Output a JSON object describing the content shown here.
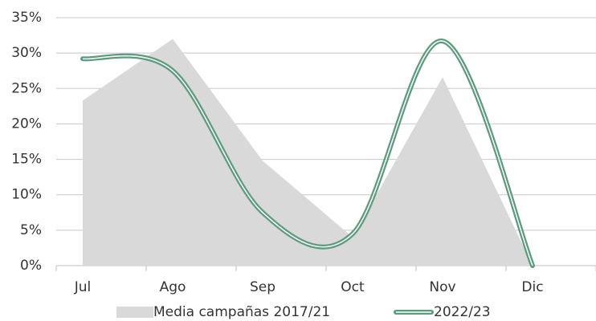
{
  "chart_data": {
    "type": "line",
    "categories": [
      "Jul",
      "Ago",
      "Sep",
      "Oct",
      "Nov",
      "Dic"
    ],
    "series": [
      {
        "name": "Media campañas 2017/21",
        "type": "area",
        "color": "#d9d9d9",
        "values": [
          23.3,
          32,
          14.8,
          4,
          26.6,
          0
        ]
      },
      {
        "name": "2022/23",
        "type": "line",
        "color": "#5b9b7e",
        "values": [
          29.2,
          27.5,
          7.5,
          4.5,
          31.7,
          0
        ]
      }
    ],
    "ylim": [
      0,
      35
    ],
    "yticks": [
      {
        "value": 0,
        "label": "0%"
      },
      {
        "value": 5,
        "label": "5%"
      },
      {
        "value": 10,
        "label": "10%"
      },
      {
        "value": 15,
        "label": "15%"
      },
      {
        "value": 20,
        "label": "20%"
      },
      {
        "value": 25,
        "label": "25%"
      },
      {
        "value": 30,
        "label": "30%"
      },
      {
        "value": 35,
        "label": "35%"
      }
    ],
    "grid": true,
    "legend": "bottom"
  }
}
